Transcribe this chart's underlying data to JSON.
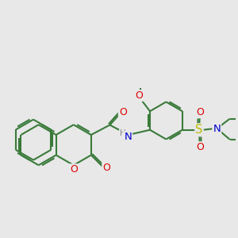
{
  "bg_color": "#e8e8e8",
  "bond_color": "#3a7a3a",
  "bond_width": 1.5,
  "atom_colors": {
    "O": "#dd0000",
    "N": "#0000cc",
    "S": "#bbbb00",
    "H": "#888888",
    "C": "#3a7a3a"
  },
  "font_size": 8.5,
  "dbo": 0.055
}
